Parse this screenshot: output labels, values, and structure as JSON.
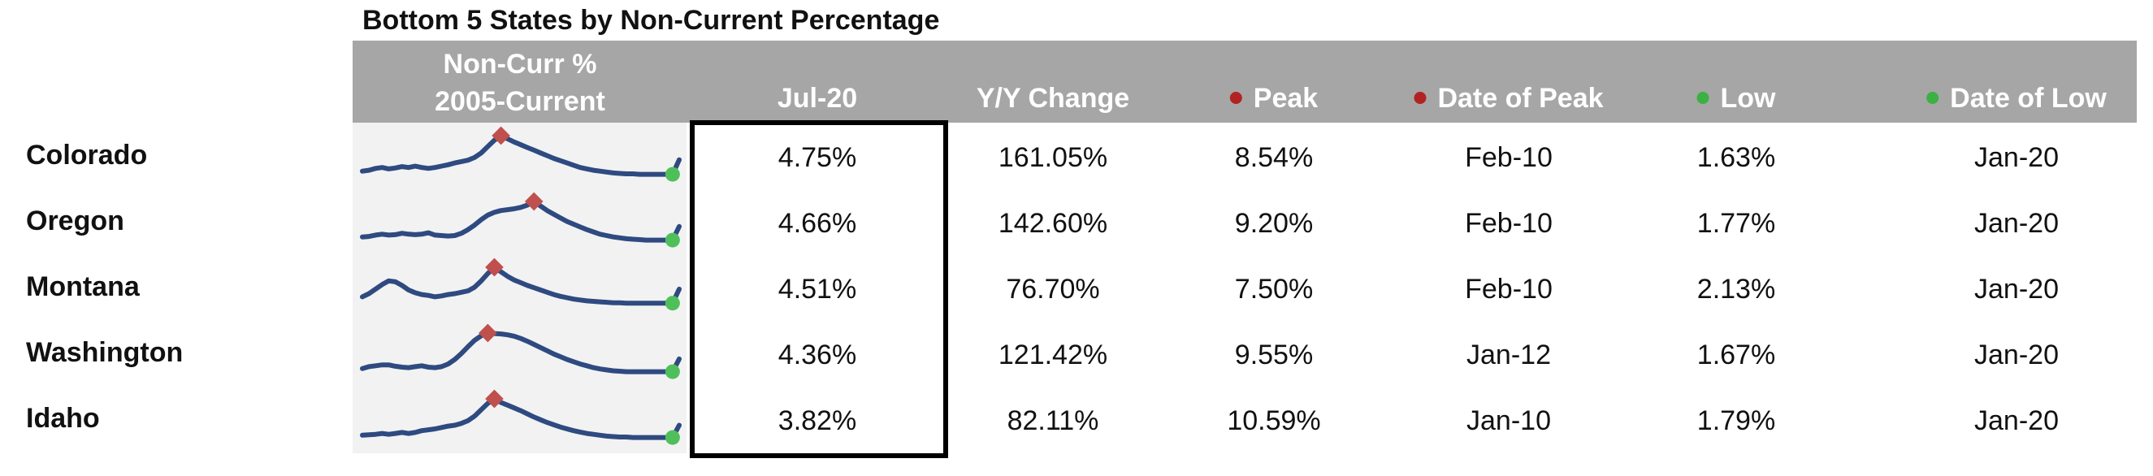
{
  "title": "Bottom 5 States by Non-Current Percentage",
  "colors": {
    "header_bg": "#a6a6a6",
    "sparkline": "#2e4a80",
    "peak_marker": "#c0504d",
    "low_marker": "#4fbf5a",
    "peak_dot": "#b22222",
    "low_dot": "#3cb043"
  },
  "headers": {
    "spark_line1": "Non-Curr %",
    "spark_line2": "2005-Current",
    "current": "Jul-20",
    "yoy": "Y/Y Change",
    "peak": "Peak",
    "peak_date": "Date of Peak",
    "low": "Low",
    "low_date": "Date of Low"
  },
  "rows": [
    {
      "state": "Colorado",
      "current": "4.75%",
      "yoy": "161.05%",
      "peak": "8.54%",
      "peak_date": "Feb-10",
      "low": "1.63%",
      "low_date": "Jan-20"
    },
    {
      "state": "Oregon",
      "current": "4.66%",
      "yoy": "142.60%",
      "peak": "9.20%",
      "peak_date": "Feb-10",
      "low": "1.77%",
      "low_date": "Jan-20"
    },
    {
      "state": "Montana",
      "current": "4.51%",
      "yoy": "76.70%",
      "peak": "7.50%",
      "peak_date": "Feb-10",
      "low": "2.13%",
      "low_date": "Jan-20"
    },
    {
      "state": "Washington",
      "current": "4.36%",
      "yoy": "121.42%",
      "peak": "9.55%",
      "peak_date": "Jan-12",
      "low": "1.67%",
      "low_date": "Jan-20"
    },
    {
      "state": "Idaho",
      "current": "3.82%",
      "yoy": "82.11%",
      "peak": "10.59%",
      "peak_date": "Jan-10",
      "low": "1.79%",
      "low_date": "Jan-20"
    }
  ],
  "chart_data": {
    "type": "table",
    "x_range": [
      "2005",
      "Jul-20"
    ],
    "series": [
      {
        "name": "Colorado",
        "shape": [
          0.22,
          0.24,
          0.28,
          0.3,
          0.27,
          0.29,
          0.32,
          0.3,
          0.33,
          0.3,
          0.28,
          0.3,
          0.33,
          0.36,
          0.4,
          0.43,
          0.46,
          0.52,
          0.62,
          0.76,
          0.9,
          1.0,
          0.93,
          0.86,
          0.8,
          0.74,
          0.68,
          0.62,
          0.56,
          0.5,
          0.45,
          0.4,
          0.35,
          0.3,
          0.27,
          0.24,
          0.22,
          0.2,
          0.18,
          0.17,
          0.16,
          0.16,
          0.15,
          0.15,
          0.15,
          0.15,
          0.15,
          0.15,
          0.47
        ]
      },
      {
        "name": "Oregon",
        "shape": [
          0.22,
          0.23,
          0.26,
          0.28,
          0.26,
          0.27,
          0.3,
          0.28,
          0.27,
          0.28,
          0.31,
          0.26,
          0.25,
          0.24,
          0.25,
          0.3,
          0.38,
          0.48,
          0.6,
          0.7,
          0.76,
          0.8,
          0.82,
          0.84,
          0.87,
          0.92,
          1.0,
          0.9,
          0.8,
          0.72,
          0.64,
          0.56,
          0.5,
          0.44,
          0.38,
          0.33,
          0.28,
          0.25,
          0.22,
          0.2,
          0.18,
          0.17,
          0.16,
          0.15,
          0.15,
          0.15,
          0.15,
          0.15,
          0.45
        ]
      },
      {
        "name": "Montana",
        "shape": [
          0.35,
          0.42,
          0.52,
          0.62,
          0.7,
          0.68,
          0.6,
          0.5,
          0.44,
          0.4,
          0.38,
          0.35,
          0.37,
          0.4,
          0.42,
          0.45,
          0.48,
          0.56,
          0.7,
          0.86,
          1.0,
          0.9,
          0.8,
          0.72,
          0.66,
          0.6,
          0.55,
          0.5,
          0.45,
          0.4,
          0.36,
          0.33,
          0.3,
          0.28,
          0.26,
          0.25,
          0.24,
          0.23,
          0.22,
          0.22,
          0.21,
          0.21,
          0.21,
          0.21,
          0.21,
          0.21,
          0.21,
          0.21,
          0.52
        ]
      },
      {
        "name": "Washington",
        "shape": [
          0.22,
          0.26,
          0.28,
          0.3,
          0.3,
          0.27,
          0.25,
          0.24,
          0.26,
          0.28,
          0.25,
          0.24,
          0.26,
          0.32,
          0.42,
          0.55,
          0.7,
          0.84,
          0.94,
          1.0,
          0.99,
          0.98,
          0.96,
          0.93,
          0.88,
          0.82,
          0.75,
          0.68,
          0.61,
          0.54,
          0.48,
          0.42,
          0.37,
          0.32,
          0.28,
          0.24,
          0.21,
          0.19,
          0.17,
          0.16,
          0.15,
          0.15,
          0.15,
          0.15,
          0.15,
          0.15,
          0.15,
          0.15,
          0.43
        ]
      },
      {
        "name": "Idaho",
        "shape": [
          0.2,
          0.21,
          0.22,
          0.24,
          0.22,
          0.24,
          0.26,
          0.24,
          0.26,
          0.3,
          0.32,
          0.34,
          0.37,
          0.4,
          0.42,
          0.46,
          0.52,
          0.62,
          0.76,
          0.9,
          1.0,
          0.92,
          0.86,
          0.8,
          0.74,
          0.67,
          0.6,
          0.54,
          0.48,
          0.43,
          0.38,
          0.34,
          0.3,
          0.27,
          0.24,
          0.22,
          0.2,
          0.18,
          0.17,
          0.16,
          0.16,
          0.15,
          0.15,
          0.15,
          0.15,
          0.15,
          0.15,
          0.15,
          0.42
        ]
      }
    ]
  }
}
